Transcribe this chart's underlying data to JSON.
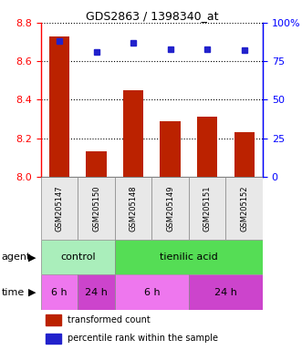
{
  "title": "GDS2863 / 1398340_at",
  "samples": [
    "GSM205147",
    "GSM205150",
    "GSM205148",
    "GSM205149",
    "GSM205151",
    "GSM205152"
  ],
  "bar_values": [
    8.73,
    8.13,
    8.45,
    8.29,
    8.31,
    8.23
  ],
  "bar_bottom": 8.0,
  "percentile_values": [
    88,
    81,
    87,
    83,
    83,
    82
  ],
  "percentile_scale_max": 100,
  "left_ylim": [
    8.0,
    8.8
  ],
  "left_yticks": [
    8.0,
    8.2,
    8.4,
    8.6,
    8.8
  ],
  "right_yticks": [
    0,
    25,
    50,
    75,
    100
  ],
  "bar_color": "#bb2200",
  "percentile_color": "#2222cc",
  "bg_color": "#e8e8e8",
  "agent_row": [
    {
      "label": "control",
      "start": 0,
      "end": 2,
      "color": "#aaeebb"
    },
    {
      "label": "tienilic acid",
      "start": 2,
      "end": 6,
      "color": "#55dd55"
    }
  ],
  "time_row": [
    {
      "label": "6 h",
      "start": 0,
      "end": 1,
      "color": "#ee77ee"
    },
    {
      "label": "24 h",
      "start": 1,
      "end": 2,
      "color": "#cc44cc"
    },
    {
      "label": "6 h",
      "start": 2,
      "end": 4,
      "color": "#ee77ee"
    },
    {
      "label": "24 h",
      "start": 4,
      "end": 6,
      "color": "#cc44cc"
    }
  ],
  "legend_bar_color": "#bb2200",
  "legend_pct_color": "#2222cc",
  "label_agent": "agent",
  "label_time": "time"
}
